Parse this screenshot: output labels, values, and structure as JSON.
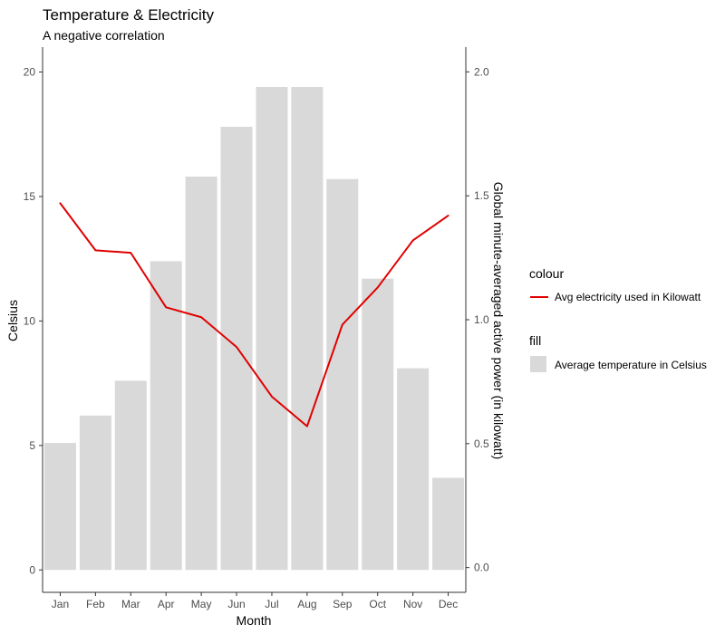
{
  "colors": {
    "bar_fill": "#d9d9d9",
    "line": "#e00000",
    "axis": "#333333",
    "tick_text": "#4d4d4d",
    "background": "#ffffff"
  },
  "chart_data": {
    "type": "bar",
    "title": "Temperature & Electricity",
    "subtitle": "A negative correlation",
    "xlabel": "Month",
    "ylabel": "Celsius",
    "y2label": "Global minute-averaged active power (in kilowatt)",
    "categories": [
      "Jan",
      "Feb",
      "Mar",
      "Apr",
      "May",
      "Jun",
      "Jul",
      "Aug",
      "Sep",
      "Oct",
      "Nov",
      "Dec"
    ],
    "ylim": [
      -0.9,
      21.0
    ],
    "y2lim": [
      -0.1,
      2.1
    ],
    "yticks": [
      0,
      5,
      10,
      15,
      20
    ],
    "y2ticks": [
      0.0,
      0.5,
      1.0,
      1.5,
      2.0
    ],
    "y2tick_labels": [
      "0.0",
      "0.5",
      "1.0",
      "1.5",
      "2.0"
    ],
    "grid": false,
    "series": [
      {
        "kind": "bar",
        "axis": "left",
        "values": [
          5.1,
          6.2,
          7.6,
          12.4,
          15.8,
          17.8,
          19.4,
          19.4,
          15.7,
          11.7,
          8.1,
          3.7
        ]
      },
      {
        "kind": "line",
        "axis": "right",
        "values": [
          1.47,
          1.28,
          1.27,
          1.05,
          1.01,
          0.89,
          0.69,
          0.57,
          0.98,
          1.13,
          1.32,
          1.42
        ]
      }
    ],
    "legend": {
      "placement": "right",
      "groups": [
        {
          "title": "colour",
          "entries": [
            {
              "label": "Avg electricity used in Kilowatt",
              "kind": "line"
            }
          ]
        },
        {
          "title": "fill",
          "entries": [
            {
              "label": "Average temperature in Celsius",
              "kind": "box"
            }
          ]
        }
      ]
    }
  }
}
